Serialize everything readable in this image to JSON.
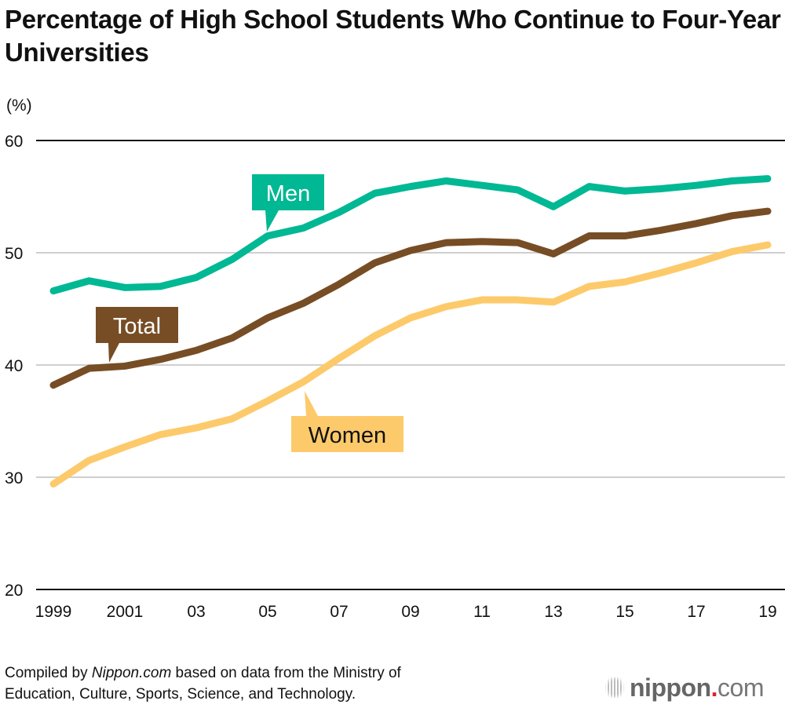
{
  "title": "Percentage of High School Students Who Continue to Four-Year Universities",
  "source_prefix": "Compiled by ",
  "source_site": "Nippon.com",
  "source_rest_line1": " based on data from the Ministry of",
  "source_line2": "Education, Culture, Sports, Science, and Technology.",
  "logo": {
    "name": "nippon",
    "dot": ".",
    "tld": "com"
  },
  "chart_data": {
    "type": "line",
    "ylabel": "(%)",
    "ylim": [
      20,
      60
    ],
    "yticks": [
      20,
      30,
      40,
      50,
      60
    ],
    "grid": true,
    "x": [
      1999,
      2000,
      2001,
      2002,
      2003,
      2004,
      2005,
      2006,
      2007,
      2008,
      2009,
      2010,
      2011,
      2012,
      2013,
      2014,
      2015,
      2016,
      2017,
      2018,
      2019
    ],
    "xtick_labels": [
      {
        "year": 1999,
        "label": "1999"
      },
      {
        "year": 2001,
        "label": "2001"
      },
      {
        "year": 2003,
        "label": "03"
      },
      {
        "year": 2005,
        "label": "05"
      },
      {
        "year": 2007,
        "label": "07"
      },
      {
        "year": 2009,
        "label": "09"
      },
      {
        "year": 2011,
        "label": "11"
      },
      {
        "year": 2013,
        "label": "13"
      },
      {
        "year": 2015,
        "label": "15"
      },
      {
        "year": 2017,
        "label": "17"
      },
      {
        "year": 2019,
        "label": "19"
      }
    ],
    "series": [
      {
        "name": "Men",
        "color": "#00b893",
        "values": [
          46.6,
          47.5,
          46.9,
          47.0,
          47.8,
          49.4,
          51.5,
          52.2,
          53.6,
          55.3,
          55.9,
          56.4,
          56.0,
          55.6,
          54.1,
          55.9,
          55.5,
          55.7,
          56.0,
          56.4,
          56.6
        ]
      },
      {
        "name": "Total",
        "color": "#774d25",
        "values": [
          38.2,
          39.7,
          39.9,
          40.5,
          41.3,
          42.4,
          44.2,
          45.5,
          47.2,
          49.1,
          50.2,
          50.9,
          51.0,
          50.9,
          49.9,
          51.5,
          51.5,
          52.0,
          52.6,
          53.3,
          53.7
        ]
      },
      {
        "name": "Women",
        "color": "#fdca6b",
        "values": [
          29.4,
          31.5,
          32.7,
          33.8,
          34.4,
          35.2,
          36.8,
          38.5,
          40.6,
          42.6,
          44.2,
          45.2,
          45.8,
          45.8,
          45.6,
          47.0,
          47.4,
          48.2,
          49.1,
          50.1,
          50.7
        ]
      }
    ]
  }
}
